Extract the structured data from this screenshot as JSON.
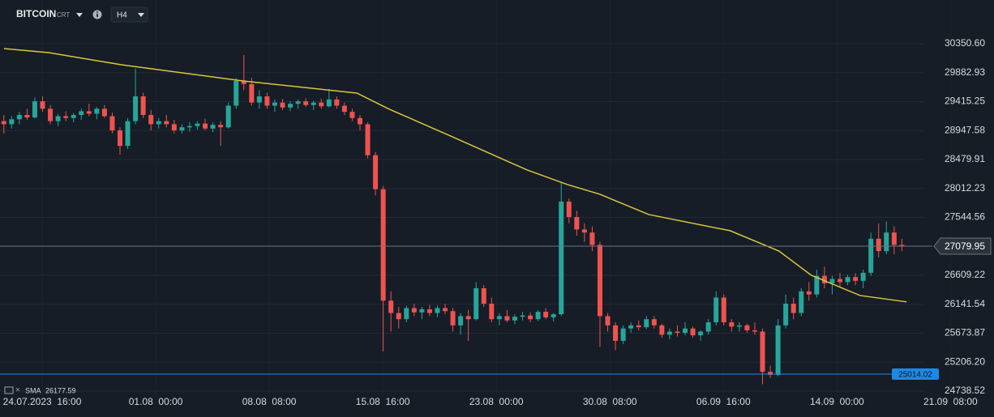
{
  "header": {
    "symbol": "BITCOIN",
    "suffix": "CRT",
    "timeframe": "H4"
  },
  "chart_data": {
    "type": "candlestick",
    "grid": true,
    "xlim": [
      0,
      128.4
    ],
    "ylim": [
      24647,
      31057
    ],
    "xticks": [
      {
        "value": 5.45,
        "label": "24.07.2023  16:00"
      },
      {
        "value": 20.12,
        "label": "01.08  00:00"
      },
      {
        "value": 34.78,
        "label": "08.08  08:00"
      },
      {
        "value": 49.45,
        "label": "15.08  16:00"
      },
      {
        "value": 64.12,
        "label": "23.08  00:00"
      },
      {
        "value": 78.78,
        "label": "30.08  08:00"
      },
      {
        "value": 93.45,
        "label": "06.09  16:00"
      },
      {
        "value": 108.12,
        "label": "14.09  00:00"
      },
      {
        "value": 122.78,
        "label": "21.09  08:00"
      }
    ],
    "yticks": [
      {
        "value": 30350.6,
        "label": "30350.60"
      },
      29882.93,
      29415.25,
      28947.58,
      28479.91,
      28012.23,
      27544.56,
      26609.22,
      26141.54,
      25673.87,
      {
        "value": 25206.2,
        "label": "25206.20"
      },
      24738.52
    ],
    "up_color": "#26a69a",
    "down_color": "#ef5350",
    "candles": [
      [
        29100,
        29200,
        28900,
        29050
      ],
      [
        29050,
        29180,
        28980,
        29130
      ],
      [
        29130,
        29250,
        29050,
        29200
      ],
      [
        29200,
        29300,
        29120,
        29160
      ],
      [
        29160,
        29480,
        29140,
        29420
      ],
      [
        29420,
        29500,
        29250,
        29300
      ],
      [
        29300,
        29360,
        29050,
        29100
      ],
      [
        29100,
        29220,
        29020,
        29180
      ],
      [
        29180,
        29260,
        29100,
        29150
      ],
      [
        29150,
        29230,
        29080,
        29200
      ],
      [
        29200,
        29300,
        29120,
        29260
      ],
      [
        29260,
        29380,
        29180,
        29220
      ],
      [
        29220,
        29330,
        29130,
        29300
      ],
      [
        29300,
        29360,
        29150,
        29180
      ],
      [
        29180,
        29240,
        28900,
        28950
      ],
      [
        28950,
        29000,
        28560,
        28700
      ],
      [
        28700,
        29150,
        28650,
        29100
      ],
      [
        29100,
        29950,
        29050,
        29500
      ],
      [
        29500,
        29560,
        29150,
        29200
      ],
      [
        29200,
        29280,
        28950,
        29050
      ],
      [
        29050,
        29150,
        28980,
        29100
      ],
      [
        29100,
        29200,
        29000,
        29050
      ],
      [
        29050,
        29120,
        28900,
        28950
      ],
      [
        28950,
        29050,
        28900,
        29000
      ],
      [
        29000,
        29080,
        28930,
        29020
      ],
      [
        29020,
        29100,
        28960,
        29060
      ],
      [
        29060,
        29140,
        28950,
        28980
      ],
      [
        28980,
        29080,
        28920,
        29040
      ],
      [
        29040,
        29100,
        28700,
        29000
      ],
      [
        29000,
        29400,
        28980,
        29350
      ],
      [
        29350,
        29800,
        29300,
        29750
      ],
      [
        29750,
        30170,
        29600,
        29700
      ],
      [
        29700,
        29800,
        29350,
        29400
      ],
      [
        29400,
        29600,
        29300,
        29500
      ],
      [
        29500,
        29560,
        29300,
        29350
      ],
      [
        29350,
        29450,
        29250,
        29400
      ],
      [
        29400,
        29460,
        29280,
        29320
      ],
      [
        29320,
        29420,
        29260,
        29380
      ],
      [
        29380,
        29450,
        29300,
        29420
      ],
      [
        29420,
        29470,
        29330,
        29360
      ],
      [
        29360,
        29430,
        29280,
        29400
      ],
      [
        29400,
        29460,
        29300,
        29340
      ],
      [
        29340,
        29620,
        29320,
        29450
      ],
      [
        29450,
        29500,
        29300,
        29350
      ],
      [
        29350,
        29400,
        29200,
        29250
      ],
      [
        29250,
        29300,
        29100,
        29150
      ],
      [
        29150,
        29200,
        28950,
        29050
      ],
      [
        29050,
        29080,
        28500,
        28550
      ],
      [
        28550,
        28600,
        27900,
        28000
      ],
      [
        28000,
        28050,
        25380,
        26200
      ],
      [
        26200,
        26350,
        25700,
        26000
      ],
      [
        26000,
        26100,
        25750,
        25900
      ],
      [
        25900,
        26120,
        25850,
        26080
      ],
      [
        26080,
        26150,
        25950,
        26010
      ],
      [
        26010,
        26100,
        25900,
        26060
      ],
      [
        26060,
        26130,
        25950,
        26000
      ],
      [
        26000,
        26120,
        25930,
        26080
      ],
      [
        26080,
        26150,
        25980,
        26030
      ],
      [
        26030,
        26080,
        25700,
        25800
      ],
      [
        25800,
        26000,
        25650,
        25950
      ],
      [
        25950,
        26050,
        25550,
        25900
      ],
      [
        25900,
        26500,
        25880,
        26400
      ],
      [
        26400,
        26450,
        26100,
        26150
      ],
      [
        26150,
        26250,
        25850,
        25900
      ],
      [
        25900,
        26000,
        25800,
        25950
      ],
      [
        25950,
        26050,
        25850,
        25880
      ],
      [
        25880,
        25980,
        25820,
        25940
      ],
      [
        25940,
        26020,
        25880,
        25960
      ],
      [
        25960,
        26010,
        25850,
        25900
      ],
      [
        25900,
        26050,
        25870,
        26020
      ],
      [
        26020,
        26080,
        25900,
        25930
      ],
      [
        25930,
        26000,
        25860,
        25980
      ],
      [
        25980,
        28120,
        25950,
        27800
      ],
      [
        27800,
        27850,
        27450,
        27550
      ],
      [
        27550,
        27650,
        27250,
        27350
      ],
      [
        27350,
        27450,
        27150,
        27300
      ],
      [
        27300,
        27400,
        27000,
        27100
      ],
      [
        27100,
        27150,
        25450,
        25950
      ],
      [
        25950,
        26000,
        25700,
        25800
      ],
      [
        25800,
        25850,
        25400,
        25550
      ],
      [
        25550,
        25800,
        25500,
        25750
      ],
      [
        25750,
        25850,
        25680,
        25800
      ],
      [
        25800,
        25880,
        25720,
        25770
      ],
      [
        25770,
        25950,
        25740,
        25900
      ],
      [
        25900,
        25950,
        25750,
        25800
      ],
      [
        25800,
        25830,
        25600,
        25650
      ],
      [
        25650,
        25750,
        25580,
        25700
      ],
      [
        25700,
        25800,
        25620,
        25680
      ],
      [
        25680,
        25850,
        25640,
        25750
      ],
      [
        25750,
        25780,
        25600,
        25640
      ],
      [
        25640,
        25720,
        25550,
        25700
      ],
      [
        25700,
        25900,
        25650,
        25850
      ],
      [
        25850,
        26350,
        25800,
        26250
      ],
      [
        26250,
        26300,
        25800,
        25850
      ],
      [
        25850,
        25900,
        25700,
        25780
      ],
      [
        25780,
        25850,
        25700,
        25800
      ],
      [
        25800,
        25830,
        25680,
        25720
      ],
      [
        25720,
        25850,
        25650,
        25700
      ],
      [
        25700,
        25750,
        24850,
        25050
      ],
      [
        25050,
        25150,
        24950,
        25000
      ],
      [
        25000,
        25900,
        24980,
        25800
      ],
      [
        25800,
        26300,
        25750,
        26150
      ],
      [
        26150,
        26250,
        25900,
        26000
      ],
      [
        26000,
        26400,
        25950,
        26350
      ],
      [
        26350,
        26500,
        26200,
        26300
      ],
      [
        26300,
        26700,
        26250,
        26600
      ],
      [
        26600,
        26750,
        26400,
        26480
      ],
      [
        26480,
        26600,
        26300,
        26550
      ],
      [
        26550,
        26650,
        26420,
        26500
      ],
      [
        26500,
        26620,
        26450,
        26580
      ],
      [
        26580,
        26640,
        26450,
        26520
      ],
      [
        26520,
        26700,
        26400,
        26650
      ],
      [
        26650,
        27300,
        26600,
        27200
      ],
      [
        27200,
        27450,
        26900,
        27000
      ],
      [
        27000,
        27480,
        26950,
        27300
      ],
      [
        27300,
        27400,
        26950,
        27100
      ],
      [
        27100,
        27200,
        27000,
        27079.95
      ]
    ],
    "sma": {
      "name": "SMA",
      "value": 26177.59,
      "color": "#d9c73c",
      "x": [
        0.52,
        6.29,
        15.7,
        31.4,
        46.1,
        50.3,
        58.7,
        68.1,
        73.3,
        77.5,
        83.8,
        94.3,
        100.6,
        104.8,
        111.1,
        117.1
      ],
      "values": [
        30272,
        30207,
        30010,
        29749,
        29553,
        29292,
        28833,
        28310,
        28075,
        27918,
        27591,
        27330,
        27003,
        26610,
        26283,
        26180
      ]
    },
    "last_price": {
      "value": 27079.95,
      "color": "#6b7480"
    },
    "price_line": {
      "value": 25014.02,
      "color": "#1e88e5"
    }
  }
}
